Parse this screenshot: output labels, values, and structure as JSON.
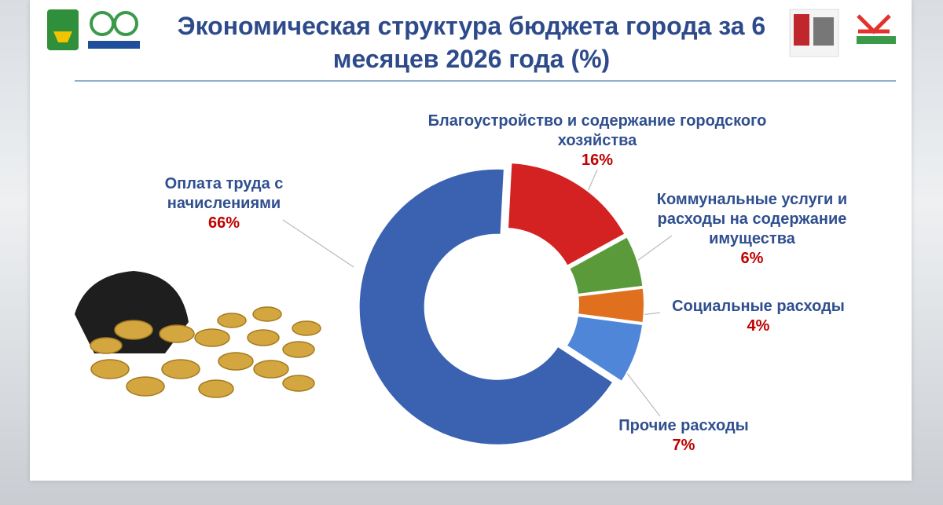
{
  "chart_data": {
    "type": "donut",
    "title": "Экономическая структура бюджета города за 6 месяцев 2026 года (%)",
    "categories": [
      "Благоустройство и содержание городского хозяйства",
      "Коммунальные услуги и расходы на содержание имущества",
      "Социальные расходы",
      "Прочие расходы",
      "Оплата труда с начислениями"
    ],
    "values": [
      16,
      6,
      4,
      7,
      66
    ],
    "value_labels": [
      "16%",
      "6%",
      "4%",
      "7%",
      "66%"
    ],
    "colors": [
      "#d42222",
      "#5b9a3a",
      "#e0701e",
      "#4f86d8",
      "#3a62b0"
    ]
  }
}
